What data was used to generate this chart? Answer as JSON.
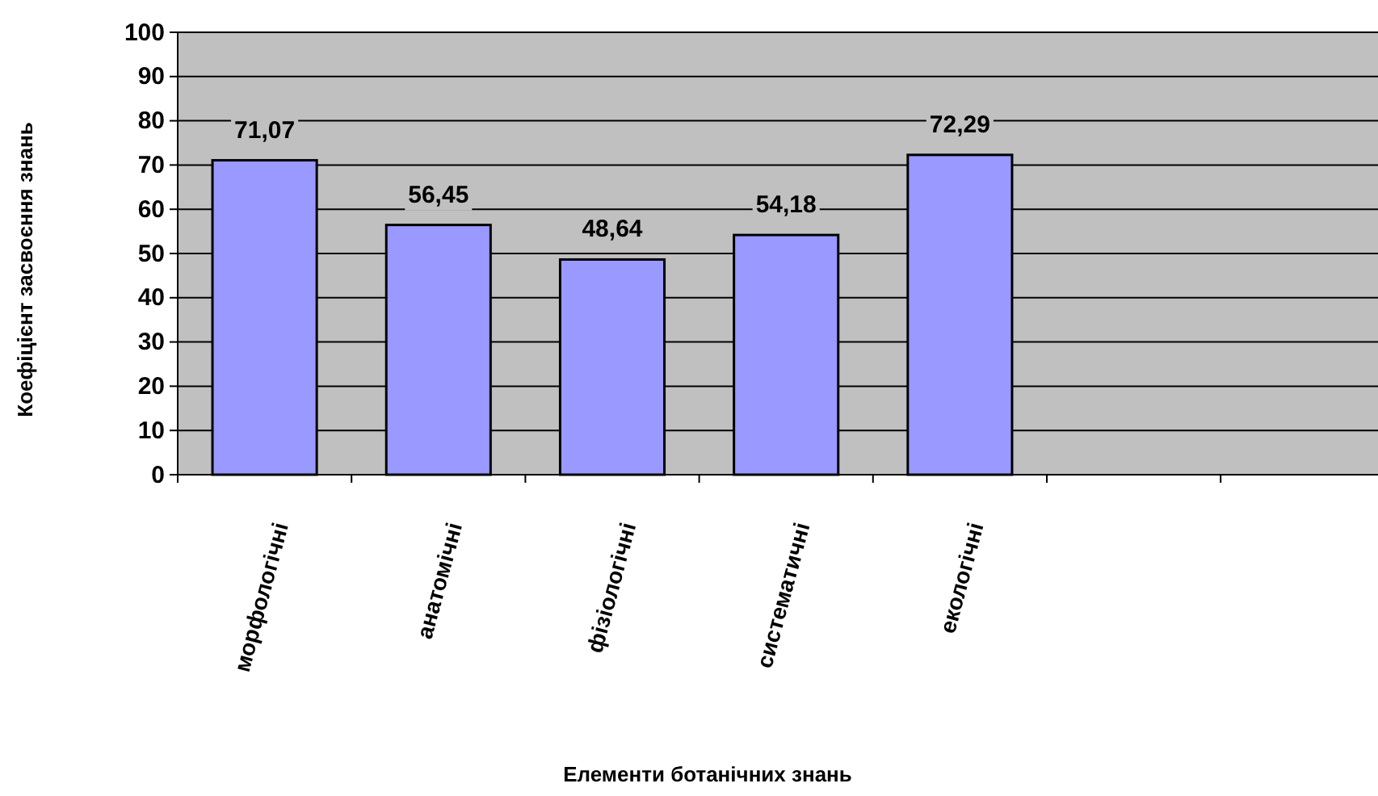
{
  "chart_data": {
    "type": "bar",
    "xlabel": "Елементи ботанічних знань",
    "ylabel": "Коефіцієнт засвоєння знань",
    "categories": [
      "морфологічні",
      "анатомічні",
      "фізіологічні",
      "систематичні",
      "екологічні",
      null,
      null
    ],
    "values": [
      71.07,
      56.45,
      48.64,
      54.18,
      72.29,
      null,
      null
    ],
    "value_labels": [
      "71,07",
      "56,45",
      "48,64",
      "54,18",
      "72,29",
      null,
      null
    ],
    "color": "#9999ff",
    "ylim": [
      0,
      100
    ],
    "yticks": [
      0,
      10,
      20,
      30,
      40,
      50,
      60,
      70,
      80,
      90,
      100
    ],
    "grid": "y"
  }
}
